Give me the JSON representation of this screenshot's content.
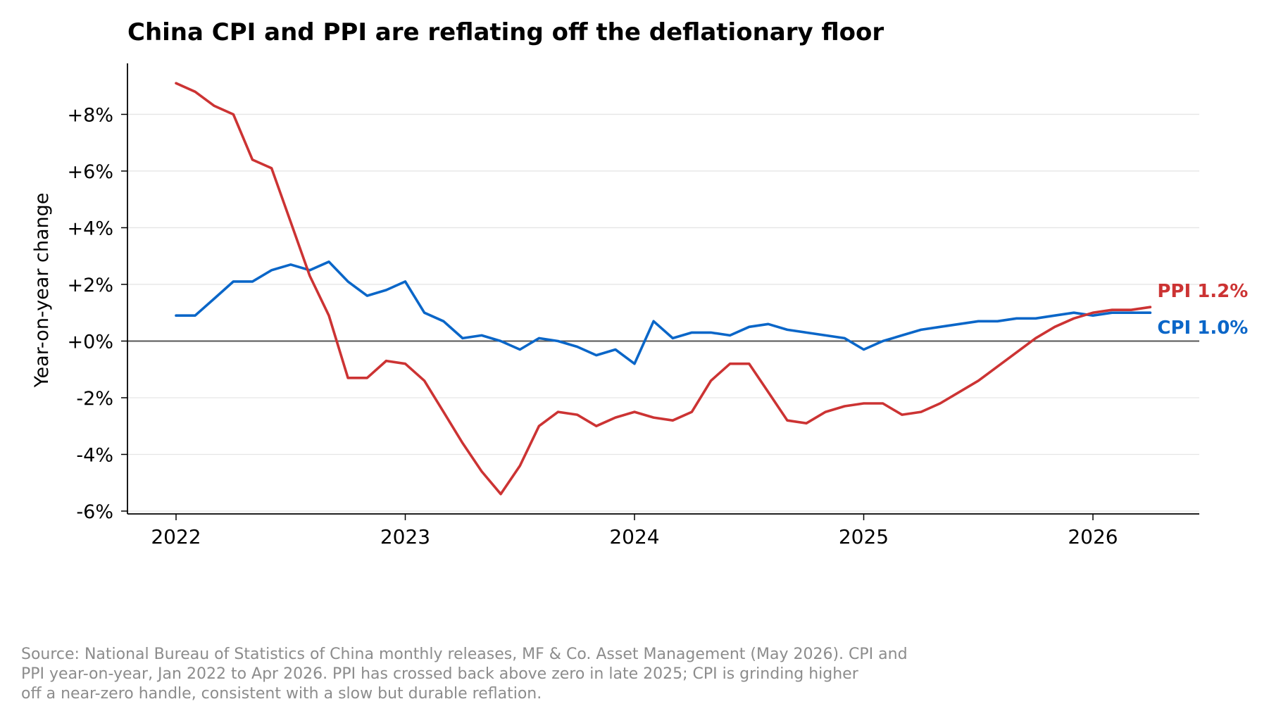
{
  "chart_data": {
    "type": "line",
    "title": "China CPI and PPI are reflating off the deflationary floor",
    "ylabel": "Year-on-year change",
    "xlabel": "",
    "x_start": "2022-01",
    "x_end": "2026-04",
    "x_ticks": [
      "2022",
      "2023",
      "2024",
      "2025",
      "2026"
    ],
    "y_ticks": [
      "+8%",
      "+6%",
      "+4%",
      "+2%",
      "+0%",
      "-2%",
      "-4%",
      "-6%"
    ],
    "y_tick_values": [
      8,
      6,
      4,
      2,
      0,
      -2,
      -4,
      -6
    ],
    "ylim": [
      -6.1,
      9.8
    ],
    "grid": "horizontal",
    "zero_line": true,
    "series": [
      {
        "name": "CPI",
        "end_label": "CPI 1.0%",
        "color": "#0a66c8",
        "values": [
          0.9,
          0.9,
          1.5,
          2.1,
          2.1,
          2.5,
          2.7,
          2.5,
          2.8,
          2.1,
          1.6,
          1.8,
          2.1,
          1.0,
          0.7,
          0.1,
          0.2,
          0.0,
          -0.3,
          0.1,
          0.0,
          -0.2,
          -0.5,
          -0.3,
          -0.8,
          0.7,
          0.1,
          0.3,
          0.3,
          0.2,
          0.5,
          0.6,
          0.4,
          0.3,
          0.2,
          0.1,
          -0.3,
          0.0,
          0.2,
          0.4,
          0.5,
          0.6,
          0.7,
          0.7,
          0.8,
          0.8,
          0.9,
          1.0,
          0.9,
          1.0,
          1.0,
          1.0
        ]
      },
      {
        "name": "PPI",
        "end_label": "PPI 1.2%",
        "color": "#cc3333",
        "values": [
          9.1,
          8.8,
          8.3,
          8.0,
          6.4,
          6.1,
          4.2,
          2.3,
          0.9,
          -1.3,
          -1.3,
          -0.7,
          -0.8,
          -1.4,
          -2.5,
          -3.6,
          -4.6,
          -5.4,
          -4.4,
          -3.0,
          -2.5,
          -2.6,
          -3.0,
          -2.7,
          -2.5,
          -2.7,
          -2.8,
          -2.5,
          -1.4,
          -0.8,
          -0.8,
          -1.8,
          -2.8,
          -2.9,
          -2.5,
          -2.3,
          -2.2,
          -2.2,
          -2.6,
          -2.5,
          -2.2,
          -1.8,
          -1.4,
          -0.9,
          -0.4,
          0.1,
          0.5,
          0.8,
          1.0,
          1.1,
          1.1,
          1.2
        ]
      }
    ]
  },
  "source_note": {
    "line1": "Source: National Bureau of Statistics of China monthly releases, MF & Co. Asset Management (May 2026). CPI and",
    "line2": "PPI year-on-year, Jan 2022 to Apr 2026. PPI has crossed back above zero in late 2025; CPI is grinding higher",
    "line3": "off a near-zero handle, consistent with a slow but durable reflation."
  }
}
